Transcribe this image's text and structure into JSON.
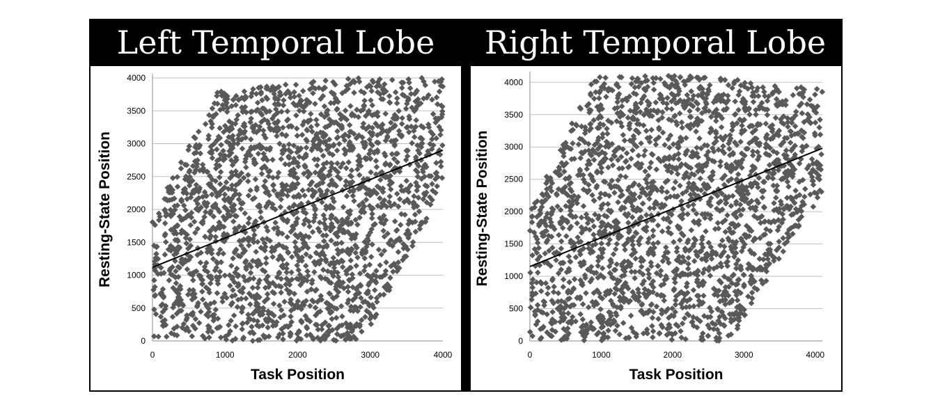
{
  "chart_data": [
    {
      "type": "scatter",
      "title": "Left Temporal Lobe",
      "xlabel": "Task Position",
      "ylabel": "Resting-State Position",
      "xlim": [
        0,
        4000
      ],
      "ylim": [
        0,
        4000
      ],
      "xticks": [
        0,
        1000,
        2000,
        3000,
        4000
      ],
      "yticks": [
        0,
        500,
        1000,
        1500,
        2000,
        2500,
        3000,
        3500,
        4000
      ],
      "grid": "horizontal",
      "marker": "diamond",
      "marker_color": "#595959",
      "point_count_estimate": 4000,
      "trendline": {
        "x": [
          0,
          4000
        ],
        "y": [
          1120,
          2900
        ],
        "color": "#000000"
      },
      "density_description": "points fill a slanted parallelogram band between the diagonal extremes",
      "approximate_envelope": [
        [
          0,
          0
        ],
        [
          1100,
          0
        ],
        [
          2900,
          0
        ],
        [
          4000,
          2300
        ],
        [
          4000,
          4000
        ],
        [
          2600,
          4000
        ],
        [
          900,
          3800
        ],
        [
          0,
          1900
        ]
      ]
    },
    {
      "type": "scatter",
      "title": "Right Temporal Lobe",
      "xlabel": "Task Position",
      "ylabel": "Resting-State Position",
      "xlim": [
        0,
        4100
      ],
      "ylim": [
        0,
        4100
      ],
      "xticks": [
        0,
        1000,
        2000,
        3000,
        4000
      ],
      "yticks": [
        0,
        500,
        1000,
        1500,
        2000,
        2500,
        3000,
        3500,
        4000
      ],
      "grid": "horizontal",
      "marker": "diamond",
      "marker_color": "#595959",
      "point_count_estimate": 4000,
      "trendline": {
        "x": [
          0,
          4100
        ],
        "y": [
          1150,
          2980
        ],
        "color": "#000000"
      },
      "density_description": "points fill a slanted parallelogram band; dense cluster near x≈4000, y≈2500–3200",
      "approximate_envelope": [
        [
          0,
          0
        ],
        [
          1200,
          0
        ],
        [
          2800,
          0
        ],
        [
          4100,
          2300
        ],
        [
          4100,
          3900
        ],
        [
          2400,
          4100
        ],
        [
          900,
          4100
        ],
        [
          0,
          2000
        ]
      ]
    }
  ]
}
